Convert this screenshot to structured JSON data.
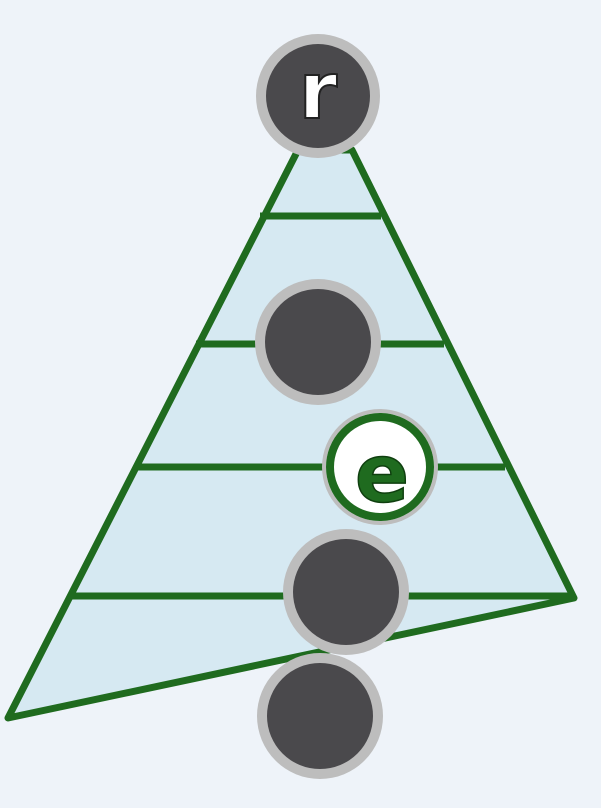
{
  "colors": {
    "background": "#eef3f9",
    "triangle_fill": "#d6e9f2",
    "triangle_stroke": "#1f6b1f",
    "node_fill": "#4a494c",
    "node_ring": "#bdbdbd",
    "highlight_fill": "#ffffff",
    "highlight_ring": "#1f6b1f",
    "root_label_color": "#ffffff",
    "highlight_label_color": "#1f6b1f"
  },
  "levels": 5,
  "nodes": [
    {
      "id": "root",
      "label": "r",
      "style": "dark"
    },
    {
      "id": "level-2",
      "label": "",
      "style": "dark"
    },
    {
      "id": "highlight",
      "label": "e",
      "style": "highlight"
    },
    {
      "id": "level-4",
      "label": "",
      "style": "dark"
    },
    {
      "id": "level-5",
      "label": "",
      "style": "dark"
    }
  ]
}
